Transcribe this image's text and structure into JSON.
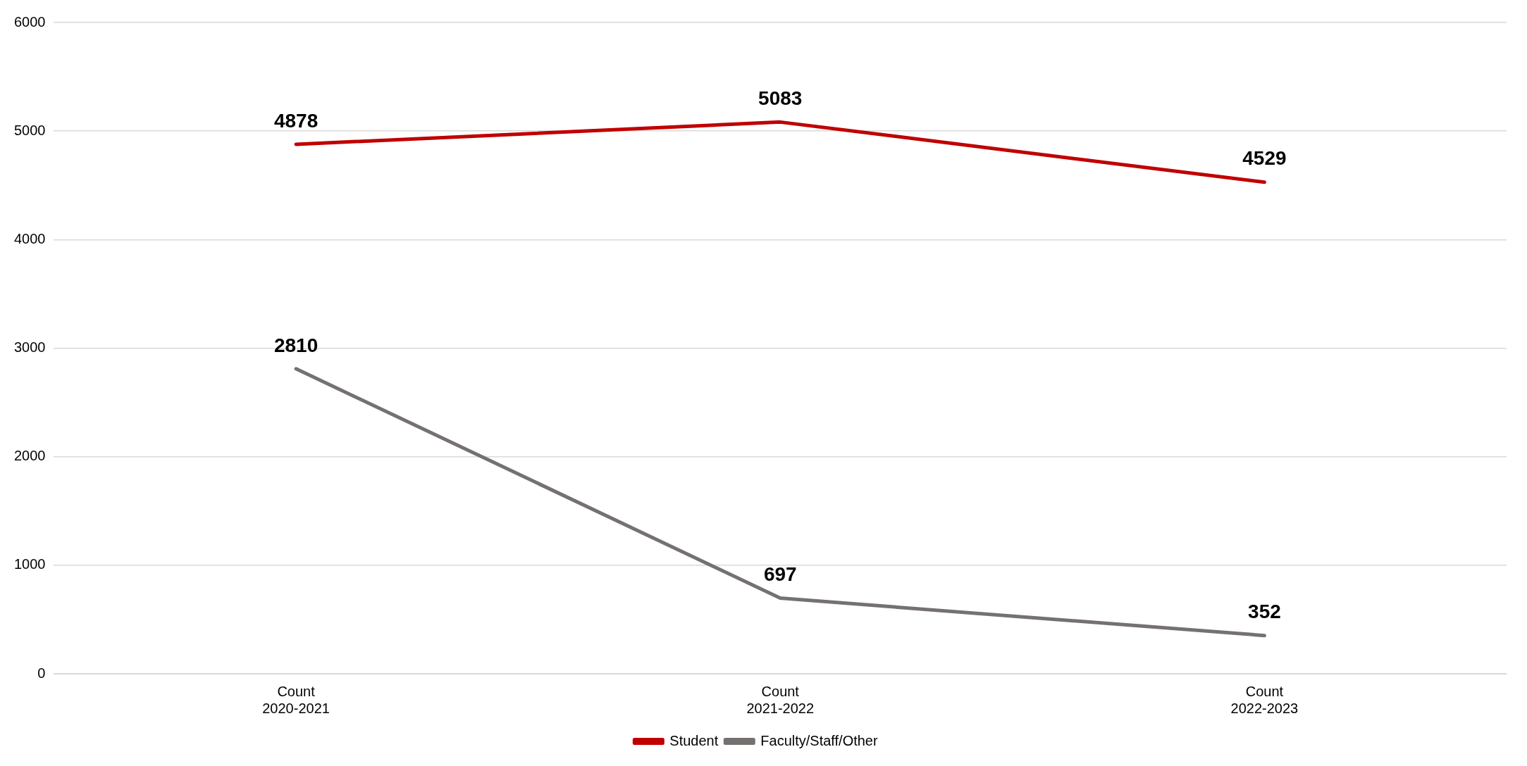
{
  "chart_data": {
    "type": "line",
    "categories": [
      "Count\n2020-2021",
      "Count\n2021-2022",
      "Count\n2022-2023"
    ],
    "series": [
      {
        "name": "Student",
        "color": "#c00000",
        "values": [
          4878,
          5083,
          4529
        ]
      },
      {
        "name": "Faculty/Staff/Other",
        "color": "#767171",
        "values": [
          2810,
          697,
          352
        ]
      }
    ],
    "ylim": [
      0,
      6000
    ],
    "yticks": [
      0,
      1000,
      2000,
      3000,
      4000,
      5000,
      6000
    ],
    "grid": "y",
    "legend": "bottom",
    "data_labels": true,
    "marker": "none",
    "line_style": "solid"
  }
}
